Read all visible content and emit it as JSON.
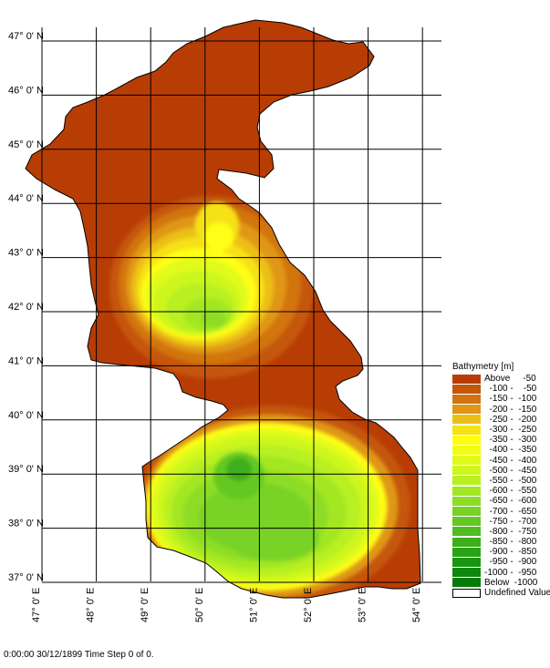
{
  "map": {
    "latitude_labels": [
      "47° 0' N",
      "46° 0' N",
      "45° 0' N",
      "44° 0' N",
      "43° 0' N",
      "42° 0' N",
      "41° 0' N",
      "40° 0' N",
      "39° 0' N",
      "38° 0' N",
      "37° 0' N"
    ],
    "longitude_labels": [
      "47° 0' E",
      "48° 0' E",
      "49° 0' E",
      "50° 0' E",
      "51° 0' E",
      "52° 0' E",
      "53° 0' E",
      "54° 0' E"
    ],
    "land_color": "#b83d04",
    "outline_color": "#000000"
  },
  "legend": {
    "title": "Bathymetry [m]",
    "items": [
      {
        "label": "Above     -50",
        "color": "#b83d04"
      },
      {
        "label": "  -100 -    -50",
        "color": "#c5570a"
      },
      {
        "label": "  -150 -  -100",
        "color": "#d27410"
      },
      {
        "label": "  -200 -  -150",
        "color": "#e09715"
      },
      {
        "label": "  -250 -  -200",
        "color": "#ecbf16"
      },
      {
        "label": "  -300 -  -250",
        "color": "#f6e114"
      },
      {
        "label": "  -350 -  -300",
        "color": "#fefe12"
      },
      {
        "label": "  -400 -  -350",
        "color": "#f2fd15"
      },
      {
        "label": "  -450 -  -400",
        "color": "#e0fb1a"
      },
      {
        "label": "  -500 -  -450",
        "color": "#cdf71e"
      },
      {
        "label": "  -550 -  -500",
        "color": "#b8f022"
      },
      {
        "label": "  -600 -  -550",
        "color": "#a3e724"
      },
      {
        "label": "  -650 -  -600",
        "color": "#8ddd25"
      },
      {
        "label": "  -700 -  -650",
        "color": "#78d325"
      },
      {
        "label": "  -750 -  -700",
        "color": "#63c823"
      },
      {
        "label": "  -800 -  -750",
        "color": "#4fbc20"
      },
      {
        "label": "  -850 -  -800",
        "color": "#3caf1b"
      },
      {
        "label": "  -900 -  -850",
        "color": "#2aa216"
      },
      {
        "label": "  -950 -  -900",
        "color": "#1a9511"
      },
      {
        "label": "-1000 -  -950",
        "color": "#0d880c"
      },
      {
        "label": "Below  -1000",
        "color": "#067b08"
      },
      {
        "label": "Undefined Value",
        "color": "#ffffff"
      }
    ]
  },
  "status": "0:00:00 30/12/1899  Time Step 0 of 0."
}
